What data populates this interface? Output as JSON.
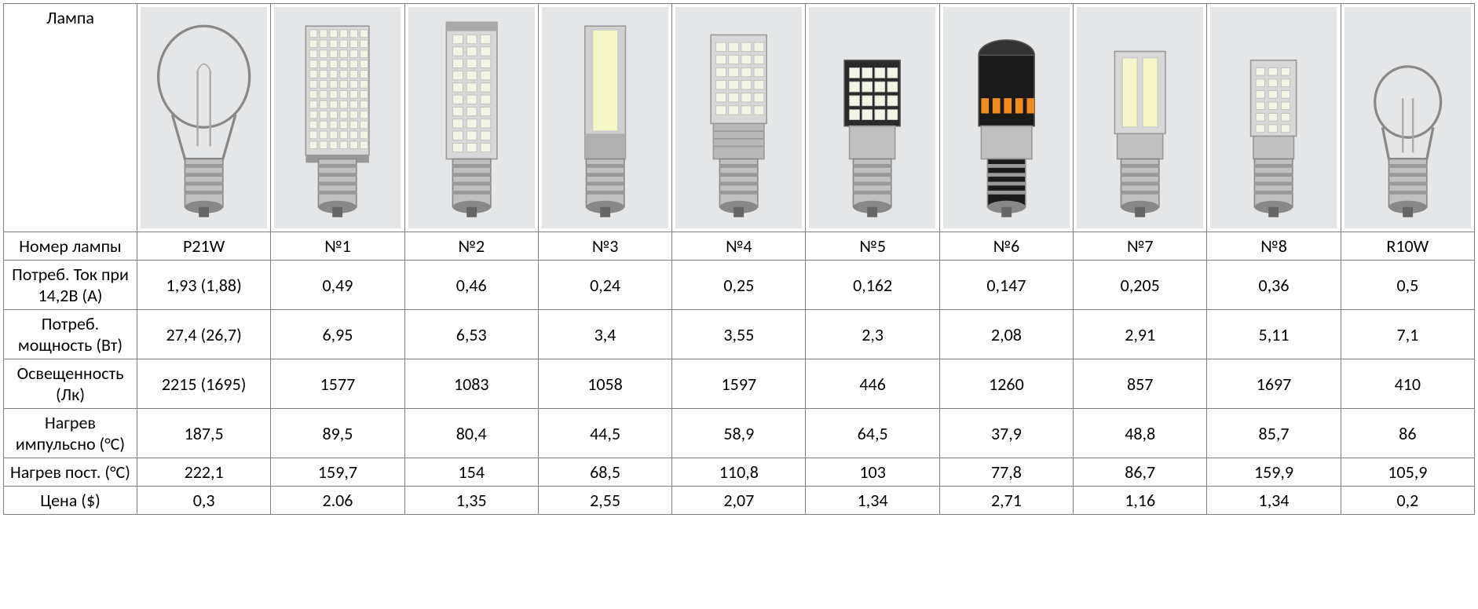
{
  "table": {
    "type": "table",
    "font_family": "Calibri",
    "font_size_pt": 16,
    "border_color": "#7f7f7f",
    "background_color": "#ffffff",
    "text_color": "#000000",
    "row_headers": [
      "Лампа",
      "Номер лампы",
      "Потреб. Ток при 14,2В (А)",
      "Потреб. мощность (Вт)",
      "Освещенность (Лк)",
      "Нагрев импульсно (°C)",
      "Нагрев пост. (°C)",
      "Цена ($)"
    ],
    "columns": [
      {
        "image": {
          "type": "incandescent-bulb",
          "bg": "#e4e6e8",
          "body": "#c0c0c0",
          "accent": "#f5f5f5"
        },
        "lamp_number": "P21W",
        "current": "1,93 (1,88)",
        "power": "27,4 (26,7)",
        "lux": "2215 (1695)",
        "heat_pulse": "187,5",
        "heat_const": "222,1",
        "price": "0,3"
      },
      {
        "image": {
          "type": "led-smd-many",
          "bg": "#e4e6e8",
          "body": "#c0c0c0",
          "accent": "#f2f5e6"
        },
        "lamp_number": "№1",
        "current": "0,49",
        "power": "6,95",
        "lux": "1577",
        "heat_pulse": "89,5",
        "heat_const": "159,7",
        "price": "2.06"
      },
      {
        "image": {
          "type": "led-smd-column",
          "bg": "#e4e6e8",
          "body": "#c0c0c0",
          "accent": "#f2f5e6"
        },
        "lamp_number": "№2",
        "current": "0,46",
        "power": "6,53",
        "lux": "1083",
        "heat_pulse": "80,4",
        "heat_const": "154",
        "price": "1,35"
      },
      {
        "image": {
          "type": "led-cob-bar",
          "bg": "#e4e6e8",
          "body": "#c0c0c0",
          "accent": "#f5f7c8"
        },
        "lamp_number": "№3",
        "current": "0,24",
        "power": "3,4",
        "lux": "1058",
        "heat_pulse": "44,5",
        "heat_const": "68,5",
        "price": "2,55"
      },
      {
        "image": {
          "type": "led-smd-block",
          "bg": "#e4e6e8",
          "body": "#c0c0c0",
          "accent": "#f2f5e6"
        },
        "lamp_number": "№4",
        "current": "0,25",
        "power": "3,55",
        "lux": "1597",
        "heat_pulse": "58,9",
        "heat_const": "110,8",
        "price": "2,07"
      },
      {
        "image": {
          "type": "led-smd-short",
          "bg": "#e4e6e8",
          "body": "#c0c0c0",
          "accent": "#f2f5e6"
        },
        "lamp_number": "№5",
        "current": "0,162",
        "power": "2,3",
        "lux": "446",
        "heat_pulse": "64,5",
        "heat_const": "103",
        "price": "1,34"
      },
      {
        "image": {
          "type": "led-black-orange",
          "bg": "#e4e6e8",
          "body": "#1a1a1a",
          "accent": "#f28c1e"
        },
        "lamp_number": "№6",
        "current": "0,147",
        "power": "2,08",
        "lux": "1260",
        "heat_pulse": "37,9",
        "heat_const": "77,8",
        "price": "2,71"
      },
      {
        "image": {
          "type": "led-panel",
          "bg": "#e4e6e8",
          "body": "#c0c0c0",
          "accent": "#f5f7c8"
        },
        "lamp_number": "№7",
        "current": "0,205",
        "power": "2,91",
        "lux": "857",
        "heat_pulse": "48,8",
        "heat_const": "86,7",
        "price": "1,16"
      },
      {
        "image": {
          "type": "led-smd-small",
          "bg": "#e4e6e8",
          "body": "#c0c0c0",
          "accent": "#f2f5e6"
        },
        "lamp_number": "№8",
        "current": "0,36",
        "power": "5,11",
        "lux": "1697",
        "heat_pulse": "85,7",
        "heat_const": "159,9",
        "price": "1,34"
      },
      {
        "image": {
          "type": "incandescent-small",
          "bg": "#e4e6e8",
          "body": "#c0c0c0",
          "accent": "#f5f5f5"
        },
        "lamp_number": "R10W",
        "current": "0,5",
        "power": "7,1",
        "lux": "410",
        "heat_pulse": "86",
        "heat_const": "105,9",
        "price": "0,2"
      }
    ]
  }
}
